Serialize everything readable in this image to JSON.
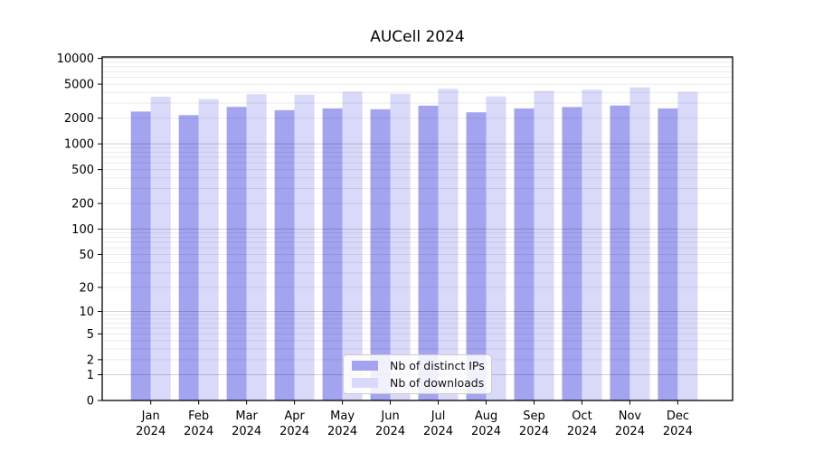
{
  "title": "AUCell 2024",
  "legend": {
    "items": [
      {
        "label": "Nb of distinct IPs",
        "color": "#a3a3f0"
      },
      {
        "label": "Nb of downloads",
        "color": "#d9d9fa"
      }
    ],
    "position": "lower center"
  },
  "chart_data": {
    "type": "bar",
    "title": "AUCell 2024",
    "categories": [
      "Jan 2024",
      "Feb 2024",
      "Mar 2024",
      "Apr 2024",
      "May 2024",
      "Jun 2024",
      "Jul 2024",
      "Aug 2024",
      "Sep 2024",
      "Oct 2024",
      "Nov 2024",
      "Dec 2024"
    ],
    "x_tick_months": [
      "Jan",
      "Feb",
      "Mar",
      "Apr",
      "May",
      "Jun",
      "Jul",
      "Aug",
      "Sep",
      "Oct",
      "Nov",
      "Dec"
    ],
    "x_tick_year": "2024",
    "series": [
      {
        "name": "Nb of distinct IPs",
        "color": "#a3a3f0",
        "values": [
          2390,
          2170,
          2710,
          2480,
          2600,
          2540,
          2800,
          2340,
          2600,
          2700,
          2810,
          2600
        ]
      },
      {
        "name": "Nb of downloads",
        "color": "#d9d9fa",
        "values": [
          3560,
          3340,
          3810,
          3770,
          4090,
          3860,
          4400,
          3590,
          4170,
          4300,
          4580,
          4060
        ]
      }
    ],
    "yscale": "log1p",
    "y_ticks": [
      0,
      1,
      2,
      5,
      10,
      20,
      50,
      100,
      200,
      500,
      1000,
      2000,
      5000,
      10000
    ],
    "ylim": [
      0,
      10300
    ],
    "xlabel": "",
    "ylabel": "",
    "grid": true,
    "grid_minor": true,
    "legend_position": "lower center",
    "axis_color": "#000000",
    "major_grid_color": "rgba(0,0,0,0.18)",
    "minor_grid_color": "rgba(0,0,0,0.08)"
  }
}
